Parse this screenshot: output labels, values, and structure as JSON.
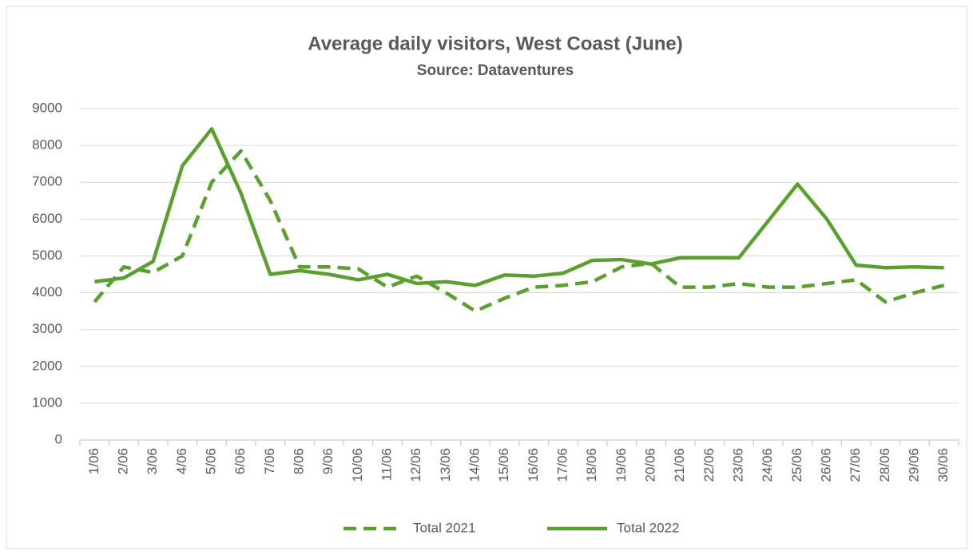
{
  "chart_data": {
    "type": "line",
    "title": "Average daily visitors, West Coast (June)",
    "subtitle": "Source: Dataventures",
    "categories": [
      "1/06",
      "2/06",
      "3/06",
      "4/06",
      "5/06",
      "6/06",
      "7/06",
      "8/06",
      "9/06",
      "10/06",
      "11/06",
      "12/06",
      "13/06",
      "14/06",
      "15/06",
      "16/06",
      "17/06",
      "18/06",
      "19/06",
      "20/06",
      "21/06",
      "22/06",
      "23/06",
      "24/06",
      "25/06",
      "26/06",
      "27/06",
      "28/06",
      "29/06",
      "30/06"
    ],
    "series": [
      {
        "name": "Total 2021",
        "color": "#5aa02c",
        "line_style": "dashed",
        "values": [
          3750,
          4700,
          4550,
          5000,
          7000,
          7850,
          6500,
          4700,
          4700,
          4650,
          4150,
          4450,
          4000,
          3500,
          3850,
          4150,
          4200,
          4300,
          4700,
          4800,
          4150,
          4150,
          4250,
          4150,
          4150,
          4250,
          4350,
          3750,
          4000,
          4200
        ]
      },
      {
        "name": "Total 2022",
        "color": "#5aa02c",
        "line_style": "solid",
        "values": [
          4300,
          4400,
          4850,
          7450,
          8450,
          6700,
          4500,
          4600,
          4500,
          4350,
          4500,
          4250,
          4300,
          4200,
          4480,
          4450,
          4530,
          4880,
          4900,
          4780,
          4950,
          4950,
          4950,
          5950,
          6950,
          6000,
          4750,
          4680,
          4700,
          4680
        ]
      }
    ],
    "ylim": [
      0,
      9000
    ],
    "yticks": [
      0,
      1000,
      2000,
      3000,
      4000,
      5000,
      6000,
      7000,
      8000,
      9000
    ],
    "grid": true,
    "legend": "bottom"
  }
}
